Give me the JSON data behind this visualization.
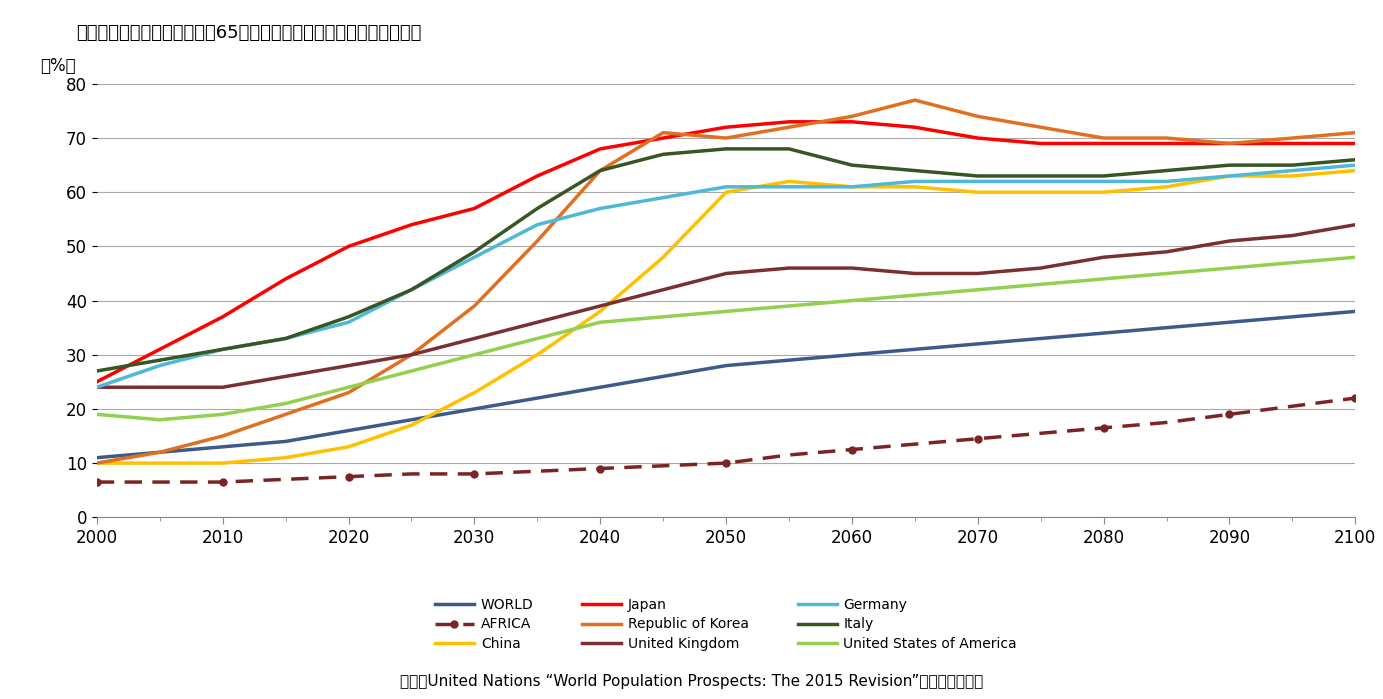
{
  "title": "図表１　各国の高齢化比率（65歳以上人口／生産年齢人口）の見通し",
  "ylabel": "（%）",
  "source": "出所：United Nations “World Population Prospects: The 2015 Revision”を筆者グラフ化",
  "years": [
    2000,
    2005,
    2010,
    2015,
    2020,
    2025,
    2030,
    2035,
    2040,
    2045,
    2050,
    2055,
    2060,
    2065,
    2070,
    2075,
    2080,
    2085,
    2090,
    2095,
    2100
  ],
  "series": [
    {
      "name": "WORLD",
      "color": "#3c5a8a",
      "linestyle": "solid",
      "linewidth": 2.5,
      "marker": null,
      "values": [
        11,
        12,
        13,
        14,
        16,
        18,
        20,
        22,
        24,
        26,
        28,
        29,
        30,
        31,
        32,
        33,
        34,
        35,
        36,
        37,
        38
      ]
    },
    {
      "name": "AFRICA",
      "color": "#7b2424",
      "linestyle": "dashed",
      "linewidth": 2.5,
      "marker": "o",
      "markersize": 5,
      "values": [
        6.5,
        6.5,
        6.5,
        7.0,
        7.5,
        8.0,
        8.0,
        8.5,
        9.0,
        9.5,
        10.0,
        11.5,
        12.5,
        13.5,
        14.5,
        15.5,
        16.5,
        17.5,
        19.0,
        20.5,
        22.0
      ]
    },
    {
      "name": "China",
      "color": "#ffc000",
      "linestyle": "solid",
      "linewidth": 2.5,
      "marker": null,
      "values": [
        10,
        10,
        10,
        11,
        13,
        17,
        23,
        30,
        38,
        48,
        60,
        62,
        61,
        61,
        60,
        60,
        60,
        61,
        63,
        63,
        64
      ]
    },
    {
      "name": "Japan",
      "color": "#ff0000",
      "linestyle": "solid",
      "linewidth": 2.5,
      "marker": null,
      "values": [
        25,
        31,
        37,
        44,
        50,
        54,
        57,
        63,
        68,
        70,
        72,
        73,
        73,
        72,
        70,
        69,
        69,
        69,
        69,
        69,
        69
      ]
    },
    {
      "name": "Republic of Korea",
      "color": "#e07020",
      "linestyle": "solid",
      "linewidth": 2.5,
      "marker": null,
      "values": [
        10,
        12,
        15,
        19,
        23,
        30,
        39,
        51,
        64,
        71,
        70,
        72,
        74,
        77,
        74,
        72,
        70,
        70,
        69,
        70,
        71
      ]
    },
    {
      "name": "United Kingdom",
      "color": "#7a3030",
      "linestyle": "solid",
      "linewidth": 2.5,
      "marker": null,
      "values": [
        24,
        24,
        24,
        26,
        28,
        30,
        33,
        36,
        39,
        42,
        45,
        46,
        46,
        45,
        45,
        46,
        48,
        49,
        51,
        52,
        54
      ]
    },
    {
      "name": "Germany",
      "color": "#4db8d8",
      "linestyle": "solid",
      "linewidth": 2.5,
      "marker": null,
      "values": [
        24,
        28,
        31,
        33,
        36,
        42,
        48,
        54,
        57,
        59,
        61,
        61,
        61,
        62,
        62,
        62,
        62,
        62,
        63,
        64,
        65
      ]
    },
    {
      "name": "Italy",
      "color": "#375623",
      "linestyle": "solid",
      "linewidth": 2.5,
      "marker": null,
      "values": [
        27,
        29,
        31,
        33,
        37,
        42,
        49,
        57,
        64,
        67,
        68,
        68,
        65,
        64,
        63,
        63,
        63,
        64,
        65,
        65,
        66
      ]
    },
    {
      "name": "United States of America",
      "color": "#92d050",
      "linestyle": "solid",
      "linewidth": 2.5,
      "marker": null,
      "values": [
        19,
        18,
        19,
        21,
        24,
        27,
        30,
        33,
        36,
        37,
        38,
        39,
        40,
        41,
        42,
        43,
        44,
        45,
        46,
        47,
        48
      ]
    }
  ],
  "ylim": [
    0,
    80
  ],
  "yticks": [
    0,
    10,
    20,
    30,
    40,
    50,
    60,
    70,
    80
  ],
  "xlim": [
    2000,
    2100
  ],
  "xticks": [
    2000,
    2010,
    2020,
    2030,
    2040,
    2050,
    2060,
    2070,
    2080,
    2090,
    2100
  ],
  "legend_order": [
    "WORLD",
    "AFRICA",
    "China",
    "Japan",
    "Republic of Korea",
    "United Kingdom",
    "Germany",
    "Italy",
    "United States of America"
  ],
  "background_color": "#ffffff",
  "grid_color": "#aaaaaa"
}
